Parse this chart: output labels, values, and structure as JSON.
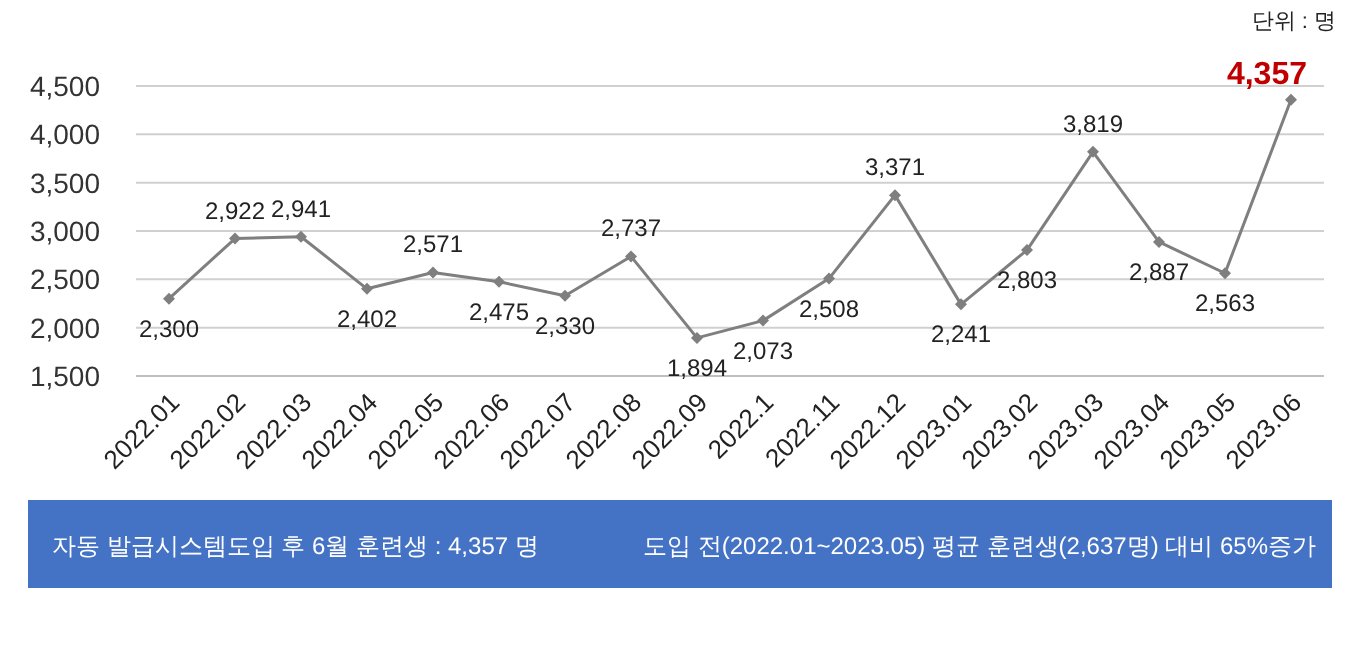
{
  "chart_data": {
    "type": "line",
    "categories": [
      "2022.01",
      "2022.02",
      "2022.03",
      "2022.04",
      "2022.05",
      "2022.06",
      "2022.07",
      "2022.08",
      "2022.09",
      "2022.1",
      "2022.11",
      "2022.12",
      "2023.01",
      "2023.02",
      "2023.03",
      "2023.04",
      "2023.05",
      "2023.06"
    ],
    "series": [
      {
        "color": "#7f7f7f",
        "values": [
          2300,
          2922,
          2941,
          2402,
          2571,
          2475,
          2330,
          2737,
          1894,
          2073,
          2508,
          3371,
          2241,
          2803,
          3819,
          2887,
          2563,
          4357
        ],
        "value_labels": [
          "2,300",
          "2,922",
          "2,941",
          "2,402",
          "2,571",
          "2,475",
          "2,330",
          "2,737",
          "1,894",
          "2,073",
          "2,508",
          "3,371",
          "2,241",
          "2,803",
          "3,819",
          "2,887",
          "2,563",
          "4,357"
        ]
      }
    ],
    "ylim": [
      1500,
      4500
    ],
    "yticks": [
      {
        "value": 1500,
        "label": "1,500"
      },
      {
        "value": 2000,
        "label": "2,000"
      },
      {
        "value": 2500,
        "label": "2,500"
      },
      {
        "value": 3000,
        "label": "3,000"
      },
      {
        "value": 3500,
        "label": "3,500"
      },
      {
        "value": 4000,
        "label": "4,000"
      },
      {
        "value": 4500,
        "label": "4,500"
      }
    ],
    "grid": "y",
    "marker": "diamond",
    "line_style": "solid",
    "annotations": [
      "단위 : 명",
      "자동 발급시스템도입 후 6월 훈련생 : 4,357 명",
      "도입 전(2022.01~2023.05) 평균 훈련생(2,637명) 대비 65%증가"
    ]
  }
}
